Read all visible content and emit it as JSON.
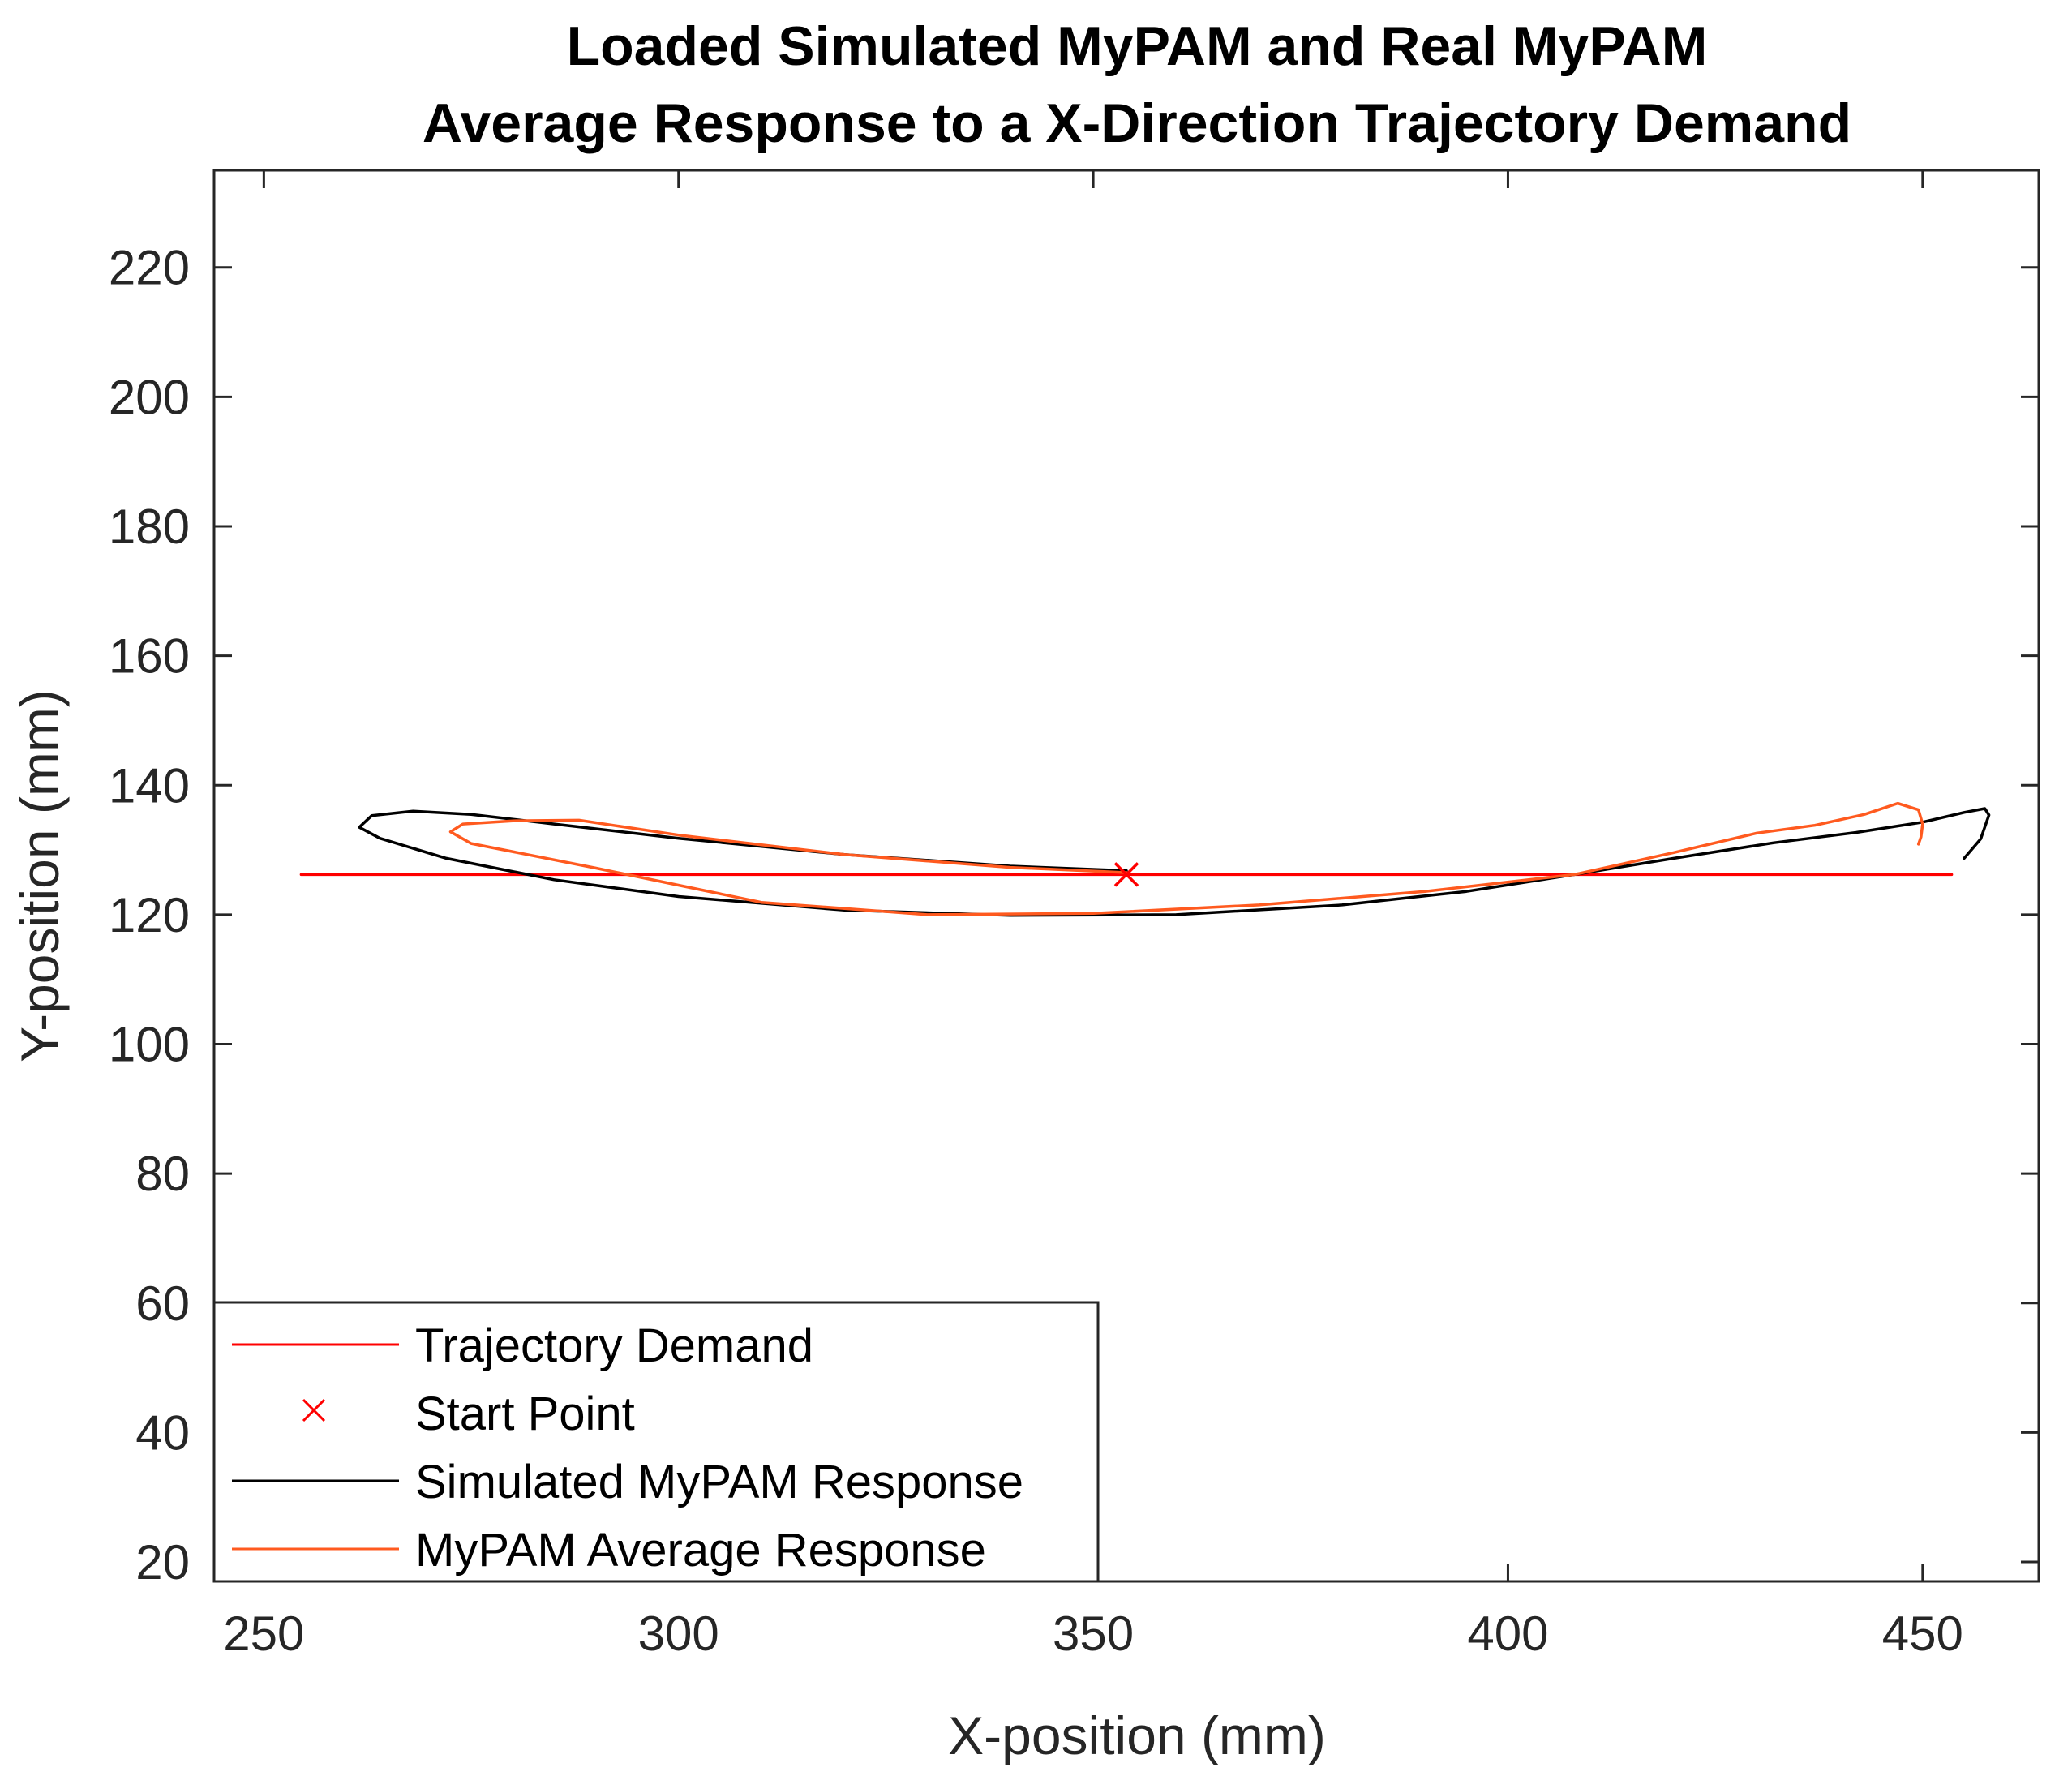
{
  "chart_data": {
    "type": "line",
    "title": "Loaded Simulated MyPAM and Real MyPAM",
    "subtitle": "Average Response to a X-Direction Trajectory Demand",
    "xlabel": "X-position (mm)",
    "ylabel": "Y-position (mm)",
    "xlim": [
      244,
      464
    ],
    "ylim": [
      17,
      235
    ],
    "xticks": [
      250,
      300,
      350,
      400,
      450
    ],
    "yticks": [
      20,
      40,
      60,
      80,
      100,
      120,
      140,
      160,
      180,
      200,
      220
    ],
    "grid": false,
    "legend_position": "bottom-left",
    "series": [
      {
        "name": "Trajectory Demand",
        "kind": "line",
        "color": "#ff0000",
        "x": [
          254.5,
          453.5
        ],
        "y": [
          126.2,
          126.2
        ]
      },
      {
        "name": "Start Point",
        "kind": "marker",
        "marker": "x",
        "color": "#ff0000",
        "x": [
          354
        ],
        "y": [
          126.2
        ]
      },
      {
        "name": "Simulated MyPAM Response",
        "kind": "line",
        "color": "#000000",
        "x": [
          354,
          340,
          320,
          300,
          285,
          275,
          268,
          263,
          261.5,
          264,
          272,
          285,
          300,
          320,
          340,
          360,
          380,
          395,
          408,
          420,
          432,
          442,
          450,
          455,
          457.5,
          458,
          457,
          455
        ],
        "y": [
          126.8,
          127.5,
          129.3,
          131.8,
          134.0,
          135.5,
          136.0,
          135.3,
          133.5,
          131.8,
          128.7,
          125.4,
          122.8,
          120.7,
          119.9,
          120.0,
          121.5,
          123.6,
          126.2,
          128.7,
          131.1,
          132.7,
          134.3,
          135.8,
          136.4,
          135.4,
          131.7,
          128.7
        ]
      },
      {
        "name": "MyPAM Average Response",
        "kind": "line",
        "color": "#ff5a1f",
        "x": [
          354,
          340,
          320,
          300,
          288,
          280,
          274,
          272.5,
          275,
          290,
          310,
          330,
          350,
          370,
          390,
          408,
          420,
          430,
          437,
          443,
          447,
          449.5,
          450,
          449.8,
          449.5
        ],
        "y": [
          126.5,
          127.3,
          129.3,
          132.3,
          134.6,
          134.5,
          134.0,
          132.8,
          131.0,
          127.2,
          121.9,
          120.0,
          120.2,
          121.5,
          123.6,
          126.2,
          129.6,
          132.6,
          133.8,
          135.5,
          137.2,
          136.2,
          134.0,
          132.0,
          130.9
        ]
      }
    ]
  }
}
